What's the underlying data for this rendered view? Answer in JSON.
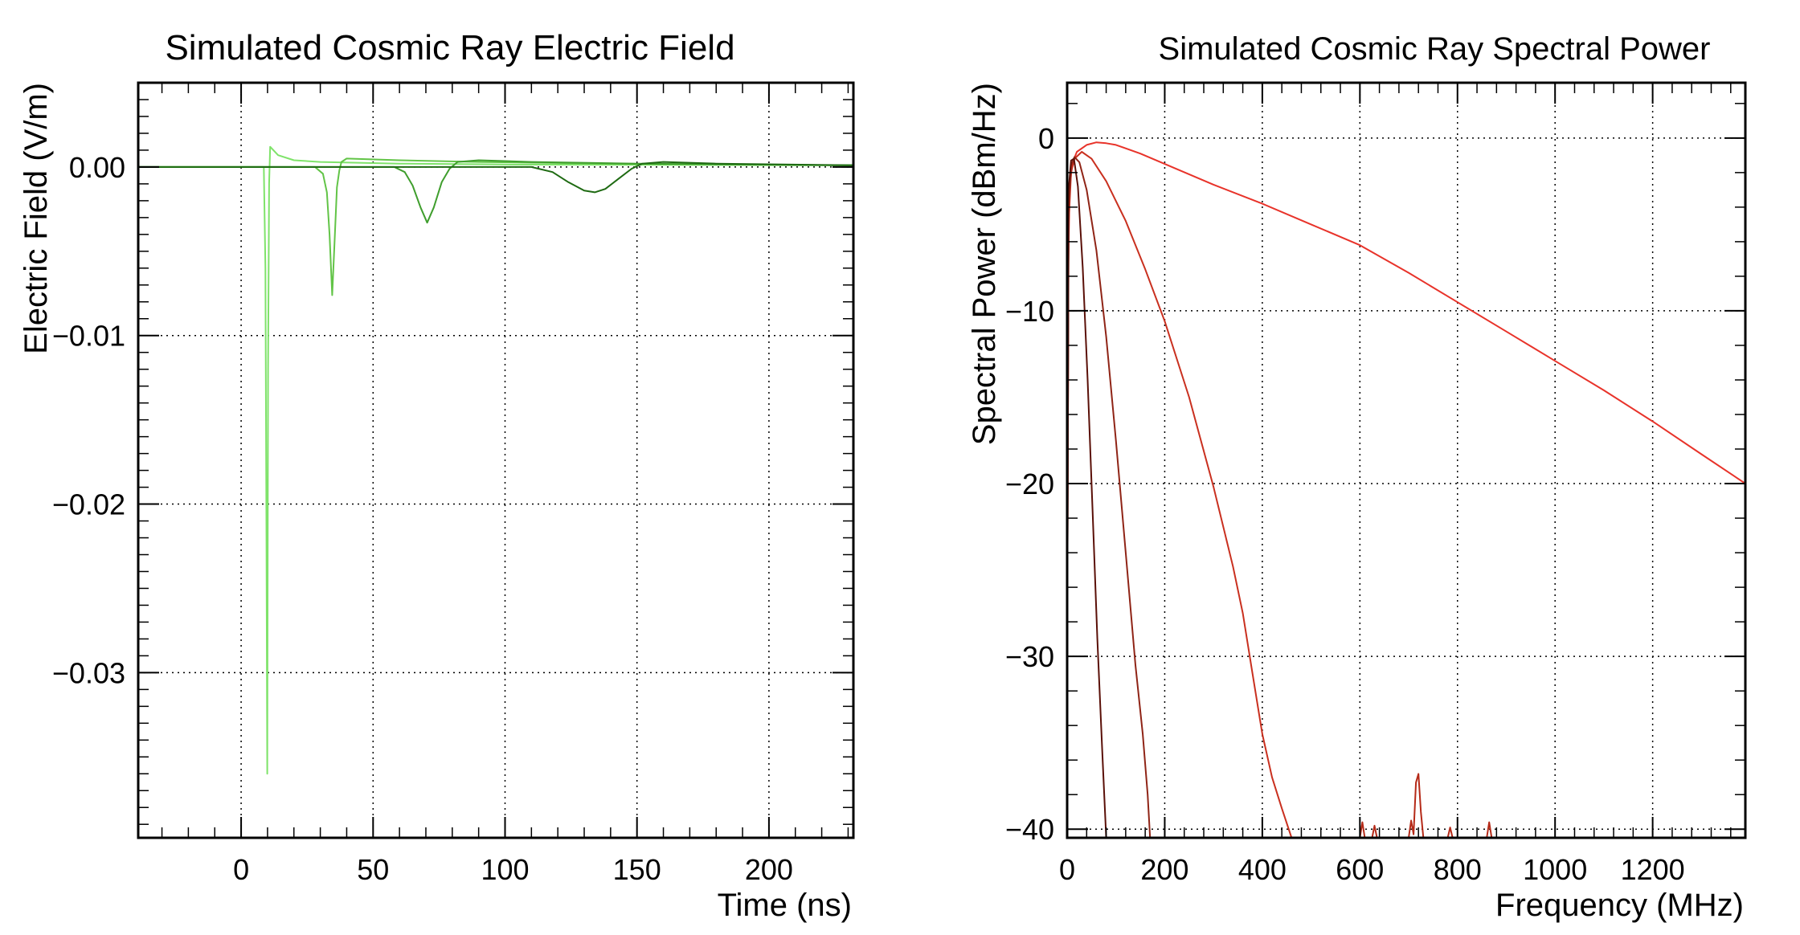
{
  "chart_data": [
    {
      "type": "line",
      "title": "Simulated Cosmic Ray Electric Field",
      "xlabel": "Time (ns)",
      "ylabel": "Electric Field (V/m)",
      "xlim": [
        -39,
        232
      ],
      "ylim": [
        -0.0398,
        0.005
      ],
      "xticks": [
        0,
        50,
        100,
        150,
        200
      ],
      "xtick_labels": [
        "0",
        "50",
        "100",
        "150",
        "200"
      ],
      "yticks": [
        0.0,
        -0.01,
        -0.02,
        -0.03
      ],
      "ytick_labels": [
        "0.00",
        "−0.01",
        "−0.02",
        "−0.03"
      ],
      "grid": true,
      "series": [
        {
          "color": "#7fe36a",
          "points": [
            [
              -39,
              0
            ],
            [
              8.6,
              0
            ],
            [
              9.2,
              -0.006
            ],
            [
              9.6,
              -0.022
            ],
            [
              9.9,
              -0.036
            ],
            [
              10.2,
              -0.012
            ],
            [
              10.6,
              -0.001
            ],
            [
              11,
              0.0012
            ],
            [
              14,
              0.0007
            ],
            [
              20,
              0.0004
            ],
            [
              30,
              0.0003
            ],
            [
              60,
              0.0002
            ],
            [
              100,
              0.00015
            ],
            [
              232,
              0.0001
            ]
          ]
        },
        {
          "color": "#62c447",
          "points": [
            [
              -39,
              0
            ],
            [
              28,
              0
            ],
            [
              31,
              -0.0004
            ],
            [
              32.5,
              -0.0015
            ],
            [
              33.5,
              -0.004
            ],
            [
              34.5,
              -0.0076
            ],
            [
              35.4,
              -0.0045
            ],
            [
              36.3,
              -0.0012
            ],
            [
              37.2,
              -0.0002
            ],
            [
              38,
              0.0003
            ],
            [
              40,
              0.0005
            ],
            [
              60,
              0.0004
            ],
            [
              90,
              0.0003
            ],
            [
              140,
              0.0002
            ],
            [
              232,
              0.0001
            ]
          ]
        },
        {
          "color": "#3f9e2d",
          "points": [
            [
              -39,
              0
            ],
            [
              58,
              0
            ],
            [
              62,
              -0.0003
            ],
            [
              65,
              -0.0011
            ],
            [
              68,
              -0.0024
            ],
            [
              70.5,
              -0.0033
            ],
            [
              73,
              -0.0024
            ],
            [
              76,
              -0.0009
            ],
            [
              79,
              -0.0001
            ],
            [
              82,
              0.0003
            ],
            [
              90,
              0.0004
            ],
            [
              110,
              0.0003
            ],
            [
              150,
              0.0002
            ],
            [
              232,
              0.0001
            ]
          ]
        },
        {
          "color": "#1e6a12",
          "points": [
            [
              -39,
              0
            ],
            [
              110,
              0
            ],
            [
              118,
              -0.0003
            ],
            [
              124,
              -0.0009
            ],
            [
              130,
              -0.0014
            ],
            [
              134,
              -0.0015
            ],
            [
              138,
              -0.0013
            ],
            [
              143,
              -0.0007
            ],
            [
              148,
              -0.0001
            ],
            [
              152,
              0.0002
            ],
            [
              160,
              0.0003
            ],
            [
              180,
              0.0002
            ],
            [
              232,
              0.0001
            ]
          ]
        }
      ]
    },
    {
      "type": "line",
      "title": "Simulated Cosmic Ray Spectral Power",
      "xlabel": "Frequency (MHz)",
      "ylabel": "Spectral Power (dBm/Hz)",
      "xlim": [
        0,
        1390
      ],
      "ylim": [
        -40.5,
        3.2
      ],
      "xticks": [
        0,
        200,
        400,
        600,
        800,
        1000,
        1200
      ],
      "xtick_labels": [
        "0",
        "200",
        "400",
        "600",
        "800",
        "1000",
        "1200"
      ],
      "yticks": [
        0,
        -10,
        -20,
        -30,
        -40
      ],
      "ytick_labels": [
        "0",
        "−10",
        "−20",
        "−30",
        "−40"
      ],
      "grid": true,
      "series": [
        {
          "color": "#e8332a",
          "points": [
            [
              0,
              -31
            ],
            [
              2,
              -8
            ],
            [
              5,
              -3
            ],
            [
              10,
              -1.5
            ],
            [
              20,
              -0.8
            ],
            [
              40,
              -0.4
            ],
            [
              60,
              -0.25
            ],
            [
              80,
              -0.3
            ],
            [
              100,
              -0.4
            ],
            [
              150,
              -0.9
            ],
            [
              200,
              -1.5
            ],
            [
              300,
              -2.7
            ],
            [
              400,
              -3.8
            ],
            [
              500,
              -5.0
            ],
            [
              600,
              -6.2
            ],
            [
              700,
              -7.8
            ],
            [
              800,
              -9.5
            ],
            [
              900,
              -11.2
            ],
            [
              1000,
              -12.9
            ],
            [
              1100,
              -14.6
            ],
            [
              1200,
              -16.4
            ],
            [
              1300,
              -18.3
            ],
            [
              1390,
              -20.0
            ]
          ]
        },
        {
          "color": "#c9301f",
          "points": [
            [
              0,
              -31
            ],
            [
              3,
              -5
            ],
            [
              8,
              -2
            ],
            [
              15,
              -1.2
            ],
            [
              30,
              -0.8
            ],
            [
              50,
              -1.2
            ],
            [
              80,
              -2.5
            ],
            [
              120,
              -4.8
            ],
            [
              160,
              -7.6
            ],
            [
              200,
              -10.6
            ],
            [
              250,
              -15.0
            ],
            [
              300,
              -20.2
            ],
            [
              340,
              -24.8
            ],
            [
              360,
              -27.5
            ],
            [
              380,
              -31
            ],
            [
              400,
              -34.5
            ],
            [
              420,
              -37
            ],
            [
              440,
              -38.8
            ],
            [
              460,
              -40.5
            ]
          ]
        },
        {
          "color": "#8f2416",
          "points": [
            [
              0,
              -31
            ],
            [
              3,
              -4
            ],
            [
              8,
              -1.6
            ],
            [
              15,
              -1.1
            ],
            [
              25,
              -1.4
            ],
            [
              40,
              -3
            ],
            [
              60,
              -6.5
            ],
            [
              80,
              -11.5
            ],
            [
              100,
              -17.5
            ],
            [
              120,
              -24
            ],
            [
              140,
              -30.5
            ],
            [
              155,
              -34.5
            ],
            [
              165,
              -38
            ],
            [
              170,
              -40.5
            ]
          ]
        },
        {
          "color": "#5a1008",
          "points": [
            [
              0,
              -31
            ],
            [
              3,
              -3
            ],
            [
              8,
              -1.3
            ],
            [
              14,
              -1.2
            ],
            [
              22,
              -2.8
            ],
            [
              32,
              -7.5
            ],
            [
              42,
              -14
            ],
            [
              52,
              -21.5
            ],
            [
              62,
              -29
            ],
            [
              72,
              -35.5
            ],
            [
              80,
              -40.5
            ]
          ]
        }
      ],
      "noise_series": {
        "color": "#b52a18",
        "points": [
          [
            600,
            -40.5
          ],
          [
            605,
            -39.6
          ],
          [
            610,
            -40.5
          ],
          [
            625,
            -40.5
          ],
          [
            630,
            -39.8
          ],
          [
            635,
            -40.5
          ],
          [
            700,
            -40.5
          ],
          [
            705,
            -39.5
          ],
          [
            710,
            -40.3
          ],
          [
            715,
            -37.3
          ],
          [
            720,
            -36.8
          ],
          [
            725,
            -39
          ],
          [
            730,
            -40.5
          ],
          [
            780,
            -40.5
          ],
          [
            785,
            -39.9
          ],
          [
            790,
            -40.5
          ],
          [
            860,
            -40.5
          ],
          [
            865,
            -39.6
          ],
          [
            870,
            -40.5
          ]
        ]
      }
    }
  ]
}
